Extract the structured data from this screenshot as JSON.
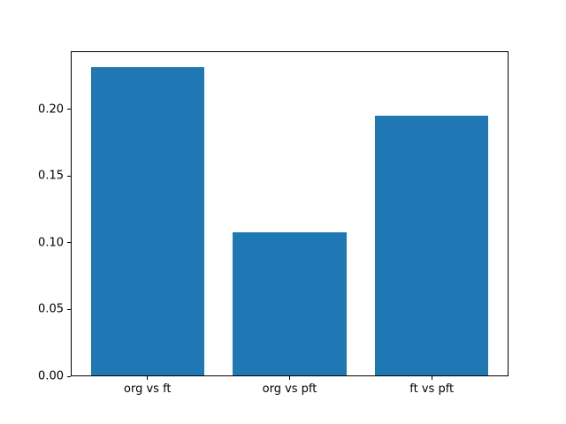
{
  "chart_data": {
    "type": "bar",
    "title": "",
    "xlabel": "",
    "ylabel": "",
    "categories": [
      "org vs ft",
      "org vs pft",
      "ft vs pft"
    ],
    "values": [
      0.232,
      0.108,
      0.196
    ],
    "yticks": [
      0.0,
      0.05,
      0.1,
      0.15,
      0.2
    ],
    "ytick_labels": [
      "0.00",
      "0.05",
      "0.10",
      "0.15",
      "0.20"
    ],
    "ylim": [
      0,
      0.2436
    ],
    "xlim": [
      -0.54,
      2.54
    ],
    "bar_width": 0.8,
    "grid": false,
    "legend": "none",
    "colors": {
      "bar": "#1f77b4",
      "axis": "#000000",
      "background": "#ffffff",
      "text": "#000000"
    }
  }
}
